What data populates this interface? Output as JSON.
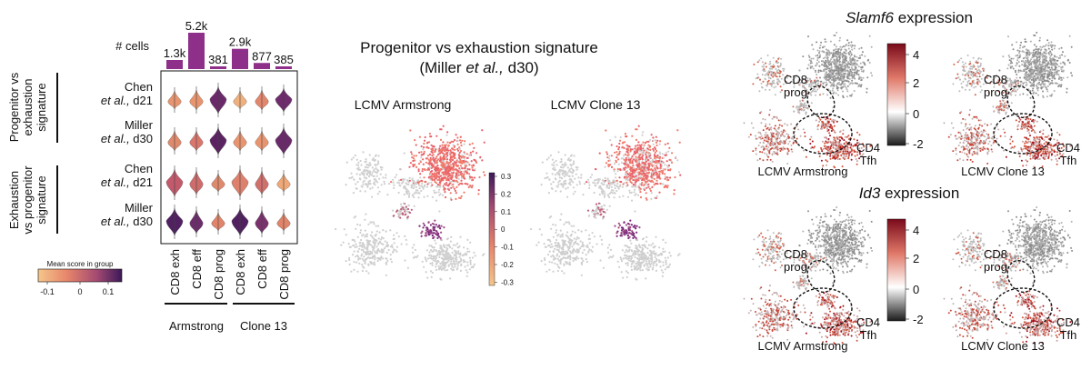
{
  "panel_a": {
    "cells_label": "# cells",
    "bar_counts": [
      "1.3k",
      "5.2k",
      "381",
      "2.9k",
      "877",
      "385"
    ],
    "bar_values": [
      1300,
      5200,
      381,
      2900,
      877,
      385
    ],
    "group_labels": [
      "Progenitor vs\nexhaustion\nsignature",
      "Exhaustion\nvs progenitor\nsignature"
    ],
    "row_labels": [
      {
        "name": "Chen",
        "etal": "et al.,",
        "day": "d21"
      },
      {
        "name": "Miller",
        "etal": "et al.,",
        "day": "d30"
      },
      {
        "name": "Chen",
        "etal": "et al.,",
        "day": "d21"
      },
      {
        "name": "Miller",
        "etal": "et al.,",
        "day": "d30"
      }
    ],
    "col_labels": [
      "CD8 exh",
      "CD8 eff",
      "CD8 prog",
      "CD8 exh",
      "CD8 eff",
      "CD8 prog"
    ],
    "conditions": [
      "Armstrong",
      "Clone 13"
    ],
    "colorbar": {
      "title": "Mean score in group",
      "ticks": [
        "-0.1",
        "0",
        "0.1"
      ]
    },
    "violin_colors": [
      [
        "#e8956f",
        "#e8956f",
        "#6a2a6a"
      ],
      [
        "#f0b07e",
        "#e2876c",
        "#6e2c6c"
      ],
      [
        "#e08a6c",
        "#d9776c",
        "#5c2362"
      ],
      [
        "#e8956f",
        "#e8956f",
        "#6a2a6a"
      ],
      [
        "#c25a6c",
        "#cf6c6c",
        "#e08a6c"
      ],
      [
        "#dd806c",
        "#d0706c",
        "#f0a878"
      ],
      [
        "#502060",
        "#6c2e6a",
        "#e0846a"
      ],
      [
        "#50205f",
        "#7a326c",
        "#e0846a"
      ]
    ]
  },
  "panel_b": {
    "title_line1": "Progenitor vs exhaustion signature",
    "title_miller": "(Miller ",
    "title_etal": "et al.,",
    "title_end": " d30)",
    "left_label": "LCMV Armstrong",
    "right_label": "LCMV Clone 13",
    "colorbar_ticks": [
      "0.3",
      "0.2",
      "0.1",
      "0",
      "-0.1",
      "-0.2",
      "-0.3"
    ]
  },
  "panel_c": {
    "gene1": "Slamf6",
    "gene2": "Id3",
    "expr_word": " expression",
    "cd8_label": [
      "CD8",
      "prog"
    ],
    "cd4_label": [
      "CD4",
      "Tfh"
    ],
    "left_label": "LCMV Armstrong",
    "right_label": "LCMV Clone 13",
    "colorbar1_ticks": [
      "4",
      "2",
      "0",
      "-2"
    ],
    "colorbar2_ticks": [
      "4",
      "2",
      "0",
      "-2"
    ]
  }
}
